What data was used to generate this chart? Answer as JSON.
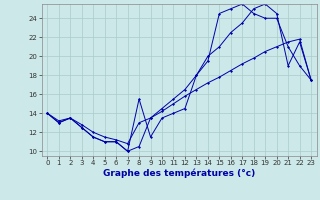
{
  "xlabel": "Graphe des températures (°c)",
  "background_color": "#cce8e8",
  "grid_color": "#aacccc",
  "line_color": "#0000aa",
  "ylim": [
    9.5,
    25.5
  ],
  "xlim": [
    -0.5,
    23.5
  ],
  "yticks": [
    10,
    12,
    14,
    16,
    18,
    20,
    22,
    24
  ],
  "xticks": [
    0,
    1,
    2,
    3,
    4,
    5,
    6,
    7,
    8,
    9,
    10,
    11,
    12,
    13,
    14,
    15,
    16,
    17,
    18,
    19,
    20,
    21,
    22,
    23
  ],
  "line1_x": [
    0,
    1,
    2,
    3,
    4,
    5,
    6,
    7,
    8,
    9,
    10,
    11,
    12,
    13,
    14,
    15,
    16,
    17,
    18,
    19,
    20,
    21,
    22,
    23
  ],
  "line1_y": [
    14.0,
    13.0,
    13.5,
    12.5,
    11.5,
    11.0,
    11.0,
    10.0,
    15.5,
    11.5,
    13.5,
    14.0,
    14.5,
    18.0,
    20.0,
    21.0,
    22.5,
    23.5,
    25.0,
    25.5,
    24.5,
    19.0,
    21.5,
    17.5
  ],
  "line2_x": [
    0,
    1,
    2,
    3,
    4,
    5,
    6,
    7,
    8,
    9,
    10,
    11,
    12,
    13,
    14,
    15,
    16,
    17,
    18,
    19,
    20,
    21,
    22,
    23
  ],
  "line2_y": [
    14.0,
    13.0,
    13.5,
    12.5,
    11.5,
    11.0,
    11.0,
    10.0,
    10.5,
    13.5,
    14.5,
    15.5,
    16.5,
    18.0,
    19.5,
    24.5,
    25.0,
    25.5,
    24.5,
    24.0,
    24.0,
    21.0,
    19.0,
    17.5
  ],
  "line3_x": [
    0,
    1,
    2,
    3,
    4,
    5,
    6,
    7,
    8,
    9,
    10,
    11,
    12,
    13,
    14,
    15,
    16,
    17,
    18,
    19,
    20,
    21,
    22,
    23
  ],
  "line3_y": [
    14.0,
    13.2,
    13.5,
    12.8,
    12.0,
    11.5,
    11.2,
    10.8,
    13.0,
    13.5,
    14.2,
    15.0,
    15.8,
    16.5,
    17.2,
    17.8,
    18.5,
    19.2,
    19.8,
    20.5,
    21.0,
    21.5,
    21.8,
    17.5
  ],
  "tick_fontsize": 5,
  "xlabel_fontsize": 6.5
}
